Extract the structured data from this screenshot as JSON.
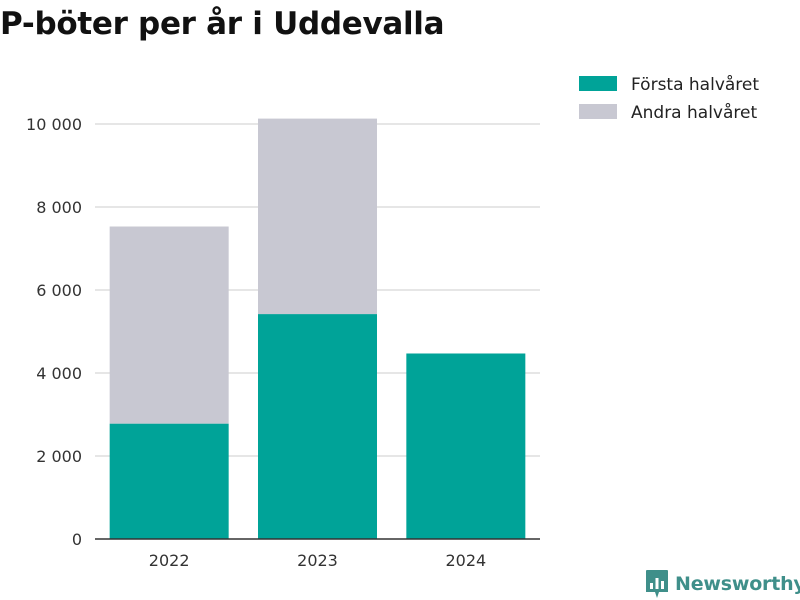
{
  "title": "P-böter per år i Uddevalla",
  "brand": {
    "name": "Newsworthy",
    "icon": "newsworthy-logo-icon",
    "color": "#3f8f8a"
  },
  "chart_data": {
    "type": "bar",
    "stacked": true,
    "title": "P-böter per år i Uddevalla",
    "xlabel": "",
    "ylabel": "",
    "categories": [
      "2022",
      "2023",
      "2024"
    ],
    "series": [
      {
        "name": "Första halvåret",
        "color": "#00a398",
        "values": [
          2780,
          5420,
          4470
        ]
      },
      {
        "name": "Andra halvåret",
        "color": "#c8c8d2",
        "values": [
          4750,
          4710,
          0
        ]
      }
    ],
    "ylim": [
      0,
      10000
    ],
    "yticks": [
      0,
      2000,
      4000,
      6000,
      8000,
      10000
    ],
    "ytick_labels": [
      "0",
      "2 000",
      "4 000",
      "6 000",
      "8 000",
      "10 000"
    ],
    "grid": true,
    "legend": "top-right"
  }
}
